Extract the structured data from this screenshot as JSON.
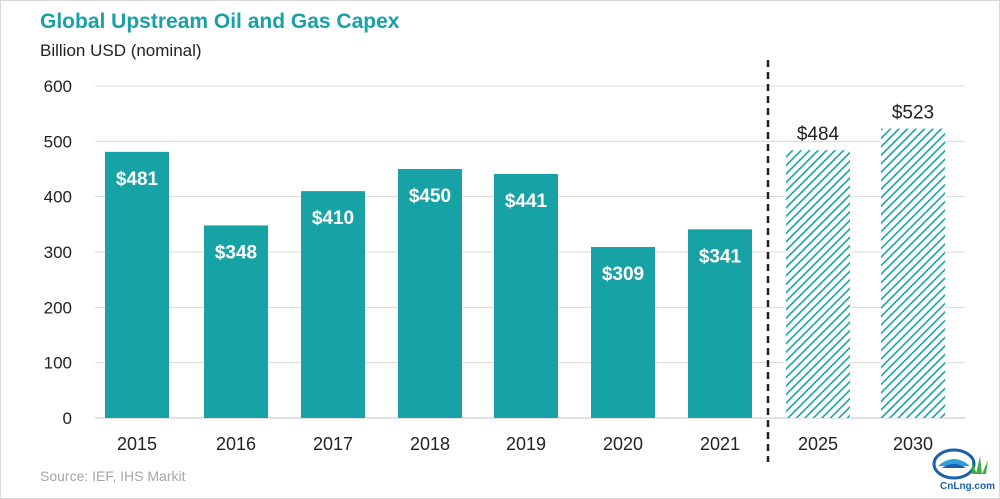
{
  "header": {
    "title": "Global Upstream Oil and Gas Capex",
    "subtitle": "Billion USD (nominal)"
  },
  "footer": {
    "source": "Source: IEF, IHS Markit"
  },
  "logo": {
    "text": "CnLng.com"
  },
  "colors": {
    "bar": "#17a2a6",
    "title": "#17a2a6",
    "forecast_hatch": "#17a2a6",
    "grid": "#d9d9d9",
    "divider": "#222222"
  },
  "chart_data": {
    "type": "bar",
    "title": "Global Upstream Oil and Gas Capex",
    "ylabel": "Billion USD (nominal)",
    "xlabel": "",
    "categories": [
      "2015",
      "2016",
      "2017",
      "2018",
      "2019",
      "2020",
      "2021",
      "2025",
      "2030"
    ],
    "values": [
      481,
      348,
      410,
      450,
      441,
      309,
      341,
      484,
      523
    ],
    "data_labels": [
      "$481",
      "$348",
      "$410",
      "$450",
      "$441",
      "$309",
      "$341",
      "$484",
      "$523"
    ],
    "forecast": [
      false,
      false,
      false,
      false,
      false,
      false,
      false,
      true,
      true
    ],
    "ylim": [
      0,
      600
    ],
    "yticks": [
      "0",
      "100",
      "200",
      "300",
      "400",
      "500",
      "600"
    ],
    "grid": true,
    "legend": "none",
    "divider_after_category": "2021",
    "forecast_style": "hatched",
    "forecast_labels_position": "above"
  }
}
